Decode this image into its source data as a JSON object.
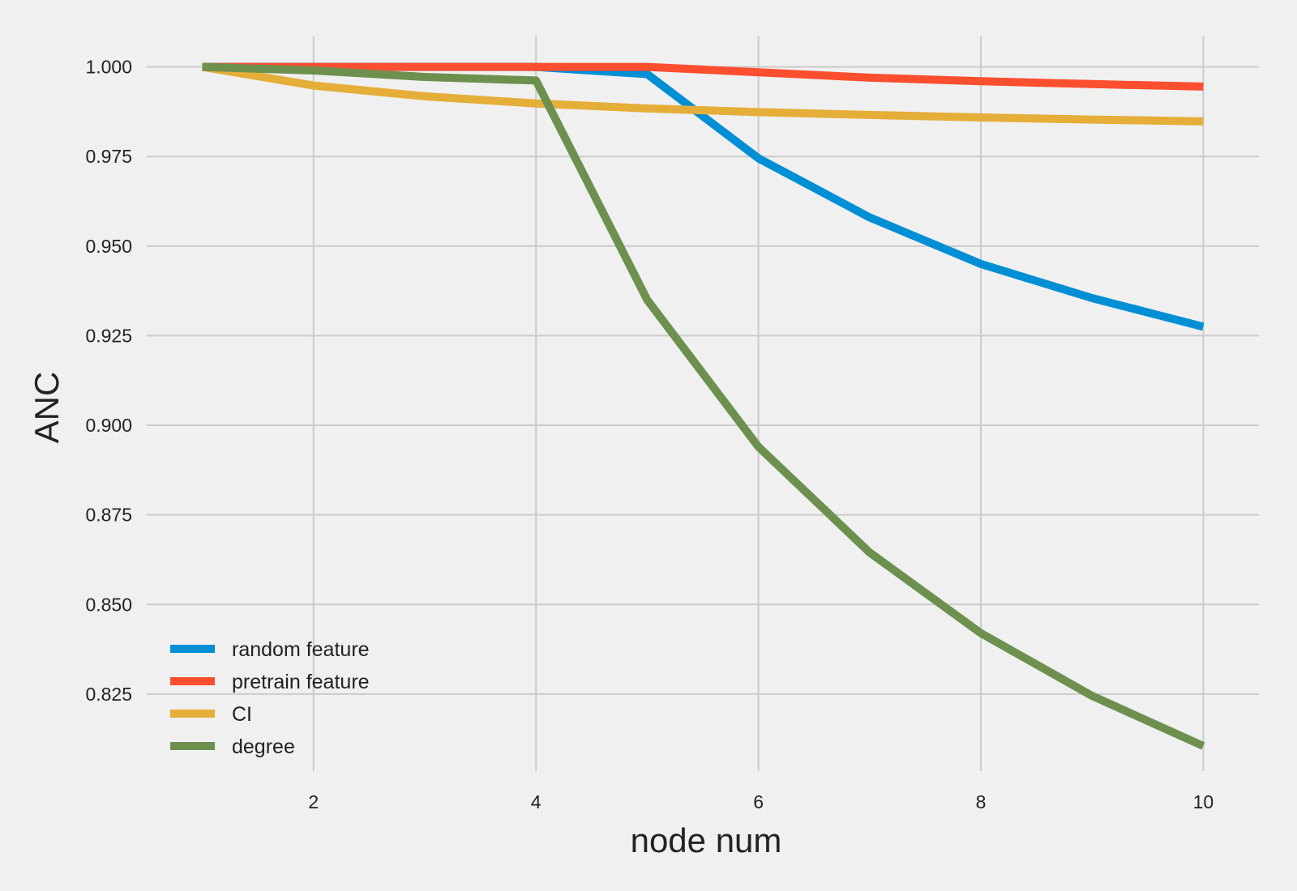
{
  "chart_data": {
    "type": "line",
    "title": "",
    "xlabel": "node num",
    "ylabel": "ANC",
    "xlim": [
      0.5,
      10.5
    ],
    "ylim": [
      0.8035,
      1.0085
    ],
    "xticks": [
      2,
      4,
      6,
      8,
      10
    ],
    "xtick_labels": [
      "2",
      "4",
      "6",
      "8",
      "10"
    ],
    "yticks": [
      0.825,
      0.85,
      0.875,
      0.9,
      0.925,
      0.95,
      0.975,
      1.0
    ],
    "ytick_labels": [
      "0.825",
      "0.850",
      "0.875",
      "0.900",
      "0.925",
      "0.950",
      "0.975",
      "1.000"
    ],
    "grid": true,
    "legend_position": "lower-left",
    "x": [
      1,
      2,
      3,
      4,
      5,
      6,
      7,
      8,
      9,
      10
    ],
    "series": [
      {
        "name": "random feature",
        "color": "#008fd5",
        "values": [
          1.0,
          1.0,
          1.0,
          1.0,
          0.998,
          0.9745,
          0.958,
          0.945,
          0.9355,
          0.9275
        ]
      },
      {
        "name": "pretrain feature",
        "color": "#fc4f30",
        "values": [
          1.0,
          1.0,
          1.0,
          1.0,
          1.0,
          0.9985,
          0.997,
          0.996,
          0.9952,
          0.9945
        ]
      },
      {
        "name": "CI",
        "color": "#e5ae38",
        "values": [
          1.0,
          0.9948,
          0.9918,
          0.9898,
          0.9884,
          0.9874,
          0.9866,
          0.9859,
          0.9853,
          0.9848
        ]
      },
      {
        "name": "degree",
        "color": "#6d904f",
        "values": [
          1.0,
          0.999,
          0.9972,
          0.9962,
          0.935,
          0.894,
          0.8645,
          0.842,
          0.8245,
          0.8105
        ]
      }
    ]
  }
}
